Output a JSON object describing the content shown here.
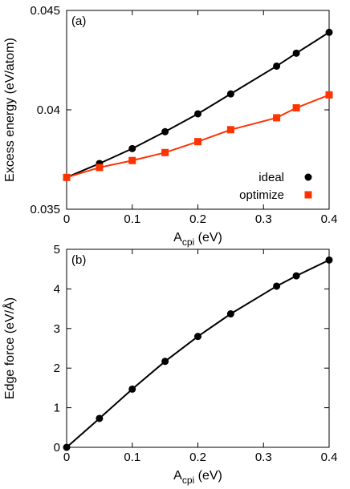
{
  "chart_data": [
    {
      "type": "line",
      "panel_label": "(a)",
      "xlabel": {
        "main": "A",
        "subscript": "cpi",
        "unit": " (eV)"
      },
      "ylabel": "Excess energy (eV/atom)",
      "xlim": [
        0,
        0.4
      ],
      "ylim": [
        0.035,
        0.045
      ],
      "xticks": [
        "0",
        "0.1",
        "0.2",
        "0.3",
        "0.4"
      ],
      "yticks": [
        "0.035",
        "0.04",
        "0.045"
      ],
      "grid": false,
      "legend_position": "bottom-right",
      "series": [
        {
          "name": "ideal",
          "color": "#000000",
          "marker": "circle",
          "x": [
            0,
            0.05,
            0.1,
            0.15,
            0.2,
            0.25,
            0.32,
            0.35,
            0.4
          ],
          "y": [
            0.0366,
            0.0373,
            0.03805,
            0.0389,
            0.0398,
            0.0408,
            0.0422,
            0.04285,
            0.0439
          ]
        },
        {
          "name": "optimize",
          "color": "#ff3300",
          "marker": "square",
          "x": [
            0,
            0.05,
            0.1,
            0.15,
            0.2,
            0.25,
            0.32,
            0.35,
            0.4
          ],
          "y": [
            0.0366,
            0.0371,
            0.03745,
            0.03785,
            0.0384,
            0.039,
            0.0396,
            0.0401,
            0.04075
          ]
        }
      ]
    },
    {
      "type": "line",
      "panel_label": "(b)",
      "xlabel": {
        "main": "A",
        "subscript": "cpi",
        "unit": " (eV)"
      },
      "ylabel": "Edge force (eV/Å)",
      "xlim": [
        0,
        0.4
      ],
      "ylim": [
        0,
        5
      ],
      "xticks": [
        "0",
        "0.1",
        "0.2",
        "0.3",
        "0.4"
      ],
      "yticks": [
        "0",
        "1",
        "2",
        "3",
        "4",
        "5"
      ],
      "grid": false,
      "series": [
        {
          "color": "#000000",
          "marker": "circle",
          "x": [
            0,
            0.05,
            0.1,
            0.15,
            0.2,
            0.25,
            0.32,
            0.35,
            0.4
          ],
          "y": [
            0.0,
            0.73,
            1.47,
            2.17,
            2.8,
            3.37,
            4.07,
            4.33,
            4.73
          ]
        }
      ]
    }
  ]
}
